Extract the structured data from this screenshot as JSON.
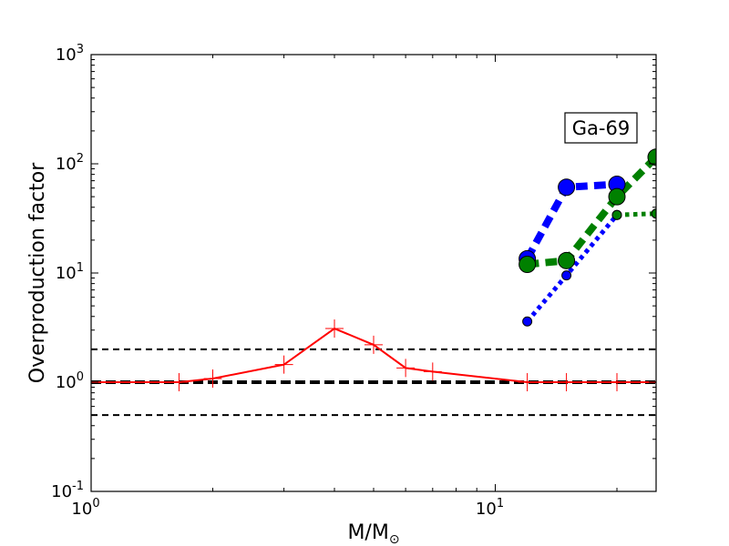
{
  "chart_data": {
    "type": "line",
    "title": "",
    "xlabel": "M/M",
    "xlabel_symbol": "⊙",
    "ylabel": "Overproduction factor",
    "xscale": "log",
    "yscale": "log",
    "xlim": [
      1,
      25
    ],
    "ylim": [
      0.1,
      1000
    ],
    "grid": false,
    "legend": "none",
    "x_ticks": [
      {
        "base": "10",
        "exp": "0",
        "value": 1
      },
      {
        "base": "10",
        "exp": "1",
        "value": 10
      }
    ],
    "y_ticks": [
      {
        "base": "10",
        "exp": "-1",
        "value": 0.1
      },
      {
        "base": "10",
        "exp": "0",
        "value": 1
      },
      {
        "base": "10",
        "exp": "1",
        "value": 10
      },
      {
        "base": "10",
        "exp": "2",
        "value": 100
      },
      {
        "base": "10",
        "exp": "3",
        "value": 1000
      }
    ],
    "annotation": "Ga-69",
    "reference_lines": [
      {
        "y": 2.0,
        "color": "#000000",
        "style": "dashed",
        "width": 2
      },
      {
        "y": 1.0,
        "color": "#000000",
        "style": "dashed",
        "width": 4
      },
      {
        "y": 0.5,
        "color": "#000000",
        "style": "dashed",
        "width": 2
      }
    ],
    "series": [
      {
        "color": "#ff0000",
        "style": "solid",
        "width": 2,
        "marker": "plus",
        "marker_size": 20,
        "x": [
          1.0,
          1.65,
          2.0,
          3.0,
          4.0,
          5.0,
          6.0,
          7.0,
          12.0,
          15.0,
          20.0,
          25.0
        ],
        "y": [
          1.0,
          1.0,
          1.08,
          1.45,
          3.1,
          2.2,
          1.35,
          1.25,
          1.0,
          1.0,
          1.0,
          1.0
        ]
      },
      {
        "color": "#0000ff",
        "style": "dashed",
        "width": 8,
        "marker": "circle",
        "marker_size": 9,
        "x": [
          12.0,
          15.0,
          20.0
        ],
        "y": [
          13.5,
          61.0,
          65.0
        ]
      },
      {
        "color": "#008000",
        "style": "dashed",
        "width": 8,
        "marker": "circle",
        "marker_size": 9,
        "x": [
          12.0,
          15.0,
          20.0,
          25.0
        ],
        "y": [
          12.0,
          13.0,
          50.0,
          115.0
        ]
      },
      {
        "color": "#0000ff",
        "style": "dotted",
        "width": 5,
        "marker": "circle",
        "marker_size": 5,
        "x": [
          12.0,
          15.0,
          20.0
        ],
        "y": [
          3.6,
          9.5,
          34.0
        ]
      },
      {
        "color": "#008000",
        "style": "dotted",
        "width": 5,
        "marker": "circle",
        "marker_size": 5,
        "x": [
          20.0,
          25.0
        ],
        "y": [
          34.0,
          35.0
        ]
      }
    ]
  }
}
